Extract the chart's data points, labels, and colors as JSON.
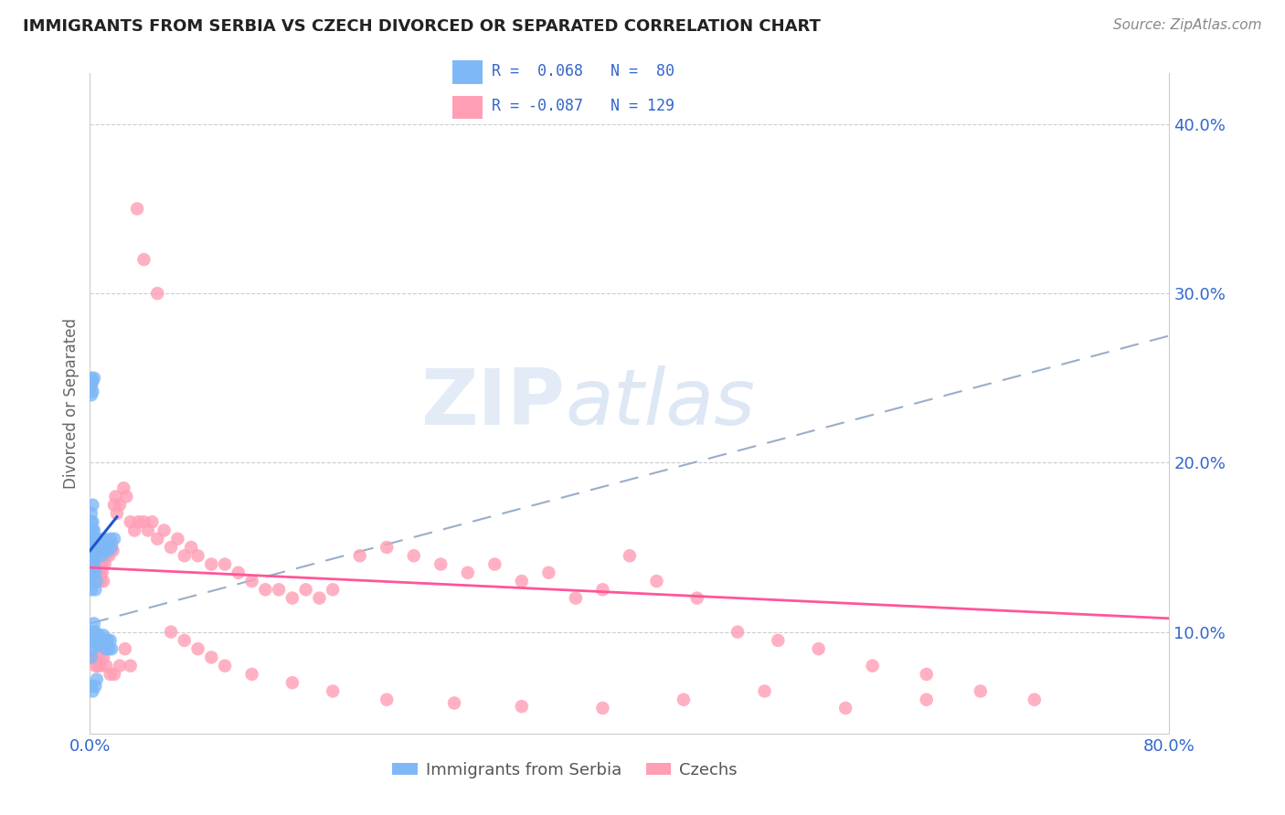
{
  "title": "IMMIGRANTS FROM SERBIA VS CZECH DIVORCED OR SEPARATED CORRELATION CHART",
  "source": "Source: ZipAtlas.com",
  "ylabel": "Divorced or Separated",
  "legend_label1": "Immigrants from Serbia",
  "legend_label2": "Czechs",
  "R1": 0.068,
  "N1": 80,
  "R2": -0.087,
  "N2": 129,
  "color1": "#7eb8f7",
  "color2": "#ff9eb5",
  "trendline1_color": "#2255cc",
  "trendline2_color": "#ff5599",
  "dashed_line_color": "#99aec8",
  "x_min": 0.0,
  "x_max": 0.8,
  "y_min": 0.04,
  "y_max": 0.43,
  "y_ticks_right": [
    0.1,
    0.2,
    0.3,
    0.4
  ],
  "y_tick_labels_right": [
    "10.0%",
    "20.0%",
    "30.0%",
    "40.0%"
  ],
  "watermark": "ZIPatlas",
  "serbia_x": [
    0.001,
    0.001,
    0.001,
    0.001,
    0.001,
    0.001,
    0.001,
    0.001,
    0.001,
    0.001,
    0.001,
    0.001,
    0.001,
    0.001,
    0.002,
    0.002,
    0.002,
    0.002,
    0.002,
    0.002,
    0.002,
    0.002,
    0.002,
    0.002,
    0.003,
    0.003,
    0.003,
    0.003,
    0.003,
    0.003,
    0.003,
    0.004,
    0.004,
    0.004,
    0.004,
    0.005,
    0.005,
    0.005,
    0.006,
    0.006,
    0.007,
    0.008,
    0.009,
    0.01,
    0.011,
    0.012,
    0.013,
    0.015,
    0.016,
    0.018,
    0.001,
    0.001,
    0.002,
    0.002,
    0.003,
    0.003,
    0.003,
    0.004,
    0.005,
    0.006,
    0.007,
    0.008,
    0.009,
    0.01,
    0.011,
    0.012,
    0.013,
    0.014,
    0.015,
    0.016,
    0.001,
    0.001,
    0.001,
    0.002,
    0.002,
    0.003,
    0.004,
    0.005,
    0.001,
    0.002
  ],
  "serbia_y": [
    0.155,
    0.165,
    0.145,
    0.14,
    0.15,
    0.16,
    0.17,
    0.15,
    0.155,
    0.145,
    0.135,
    0.125,
    0.13,
    0.14,
    0.15,
    0.16,
    0.155,
    0.145,
    0.135,
    0.165,
    0.175,
    0.155,
    0.148,
    0.142,
    0.15,
    0.155,
    0.145,
    0.14,
    0.15,
    0.16,
    0.138,
    0.145,
    0.155,
    0.135,
    0.125,
    0.155,
    0.148,
    0.13,
    0.15,
    0.148,
    0.152,
    0.148,
    0.145,
    0.155,
    0.148,
    0.152,
    0.148,
    0.155,
    0.15,
    0.155,
    0.095,
    0.085,
    0.09,
    0.1,
    0.105,
    0.095,
    0.098,
    0.1,
    0.095,
    0.092,
    0.098,
    0.092,
    0.095,
    0.098,
    0.095,
    0.09,
    0.095,
    0.09,
    0.095,
    0.09,
    0.24,
    0.25,
    0.245,
    0.248,
    0.242,
    0.25,
    0.068,
    0.072,
    0.068,
    0.065
  ],
  "czech_x": [
    0.001,
    0.001,
    0.001,
    0.001,
    0.001,
    0.001,
    0.001,
    0.001,
    0.002,
    0.002,
    0.002,
    0.002,
    0.002,
    0.002,
    0.002,
    0.003,
    0.003,
    0.003,
    0.003,
    0.003,
    0.004,
    0.004,
    0.004,
    0.004,
    0.005,
    0.005,
    0.005,
    0.005,
    0.006,
    0.006,
    0.006,
    0.007,
    0.007,
    0.008,
    0.008,
    0.009,
    0.009,
    0.01,
    0.01,
    0.011,
    0.012,
    0.013,
    0.014,
    0.015,
    0.016,
    0.017,
    0.018,
    0.019,
    0.02,
    0.022,
    0.025,
    0.027,
    0.03,
    0.033,
    0.036,
    0.04,
    0.043,
    0.046,
    0.05,
    0.055,
    0.06,
    0.065,
    0.07,
    0.075,
    0.08,
    0.09,
    0.1,
    0.11,
    0.12,
    0.13,
    0.14,
    0.15,
    0.16,
    0.17,
    0.18,
    0.2,
    0.22,
    0.24,
    0.26,
    0.28,
    0.3,
    0.32,
    0.34,
    0.36,
    0.38,
    0.4,
    0.42,
    0.45,
    0.48,
    0.51,
    0.54,
    0.58,
    0.62,
    0.66,
    0.7,
    0.001,
    0.002,
    0.003,
    0.004,
    0.005,
    0.006,
    0.007,
    0.008,
    0.01,
    0.012,
    0.015,
    0.018,
    0.022,
    0.026,
    0.03,
    0.035,
    0.04,
    0.05,
    0.06,
    0.07,
    0.08,
    0.09,
    0.1,
    0.12,
    0.15,
    0.18,
    0.22,
    0.27,
    0.32,
    0.38,
    0.44,
    0.5,
    0.56,
    0.62
  ],
  "czech_y": [
    0.135,
    0.14,
    0.145,
    0.15,
    0.145,
    0.14,
    0.135,
    0.13,
    0.14,
    0.145,
    0.135,
    0.13,
    0.14,
    0.145,
    0.135,
    0.14,
    0.145,
    0.135,
    0.13,
    0.14,
    0.145,
    0.135,
    0.14,
    0.13,
    0.145,
    0.135,
    0.14,
    0.13,
    0.145,
    0.135,
    0.14,
    0.145,
    0.135,
    0.14,
    0.13,
    0.14,
    0.135,
    0.145,
    0.13,
    0.14,
    0.145,
    0.15,
    0.145,
    0.148,
    0.152,
    0.148,
    0.175,
    0.18,
    0.17,
    0.175,
    0.185,
    0.18,
    0.165,
    0.16,
    0.165,
    0.165,
    0.16,
    0.165,
    0.155,
    0.16,
    0.15,
    0.155,
    0.145,
    0.15,
    0.145,
    0.14,
    0.14,
    0.135,
    0.13,
    0.125,
    0.125,
    0.12,
    0.125,
    0.12,
    0.125,
    0.145,
    0.15,
    0.145,
    0.14,
    0.135,
    0.14,
    0.13,
    0.135,
    0.12,
    0.125,
    0.145,
    0.13,
    0.12,
    0.1,
    0.095,
    0.09,
    0.08,
    0.075,
    0.065,
    0.06,
    0.095,
    0.09,
    0.085,
    0.08,
    0.085,
    0.08,
    0.085,
    0.08,
    0.085,
    0.08,
    0.075,
    0.075,
    0.08,
    0.09,
    0.08,
    0.35,
    0.32,
    0.3,
    0.1,
    0.095,
    0.09,
    0.085,
    0.08,
    0.075,
    0.07,
    0.065,
    0.06,
    0.058,
    0.056,
    0.055,
    0.06,
    0.065,
    0.055,
    0.06
  ],
  "trendline1_x": [
    0.0,
    0.02
  ],
  "trendline1_y": [
    0.148,
    0.168
  ],
  "trendline2_x": [
    0.0,
    0.8
  ],
  "trendline2_y": [
    0.138,
    0.108
  ],
  "dashline_x": [
    0.0,
    0.8
  ],
  "dashline_y": [
    0.105,
    0.275
  ]
}
